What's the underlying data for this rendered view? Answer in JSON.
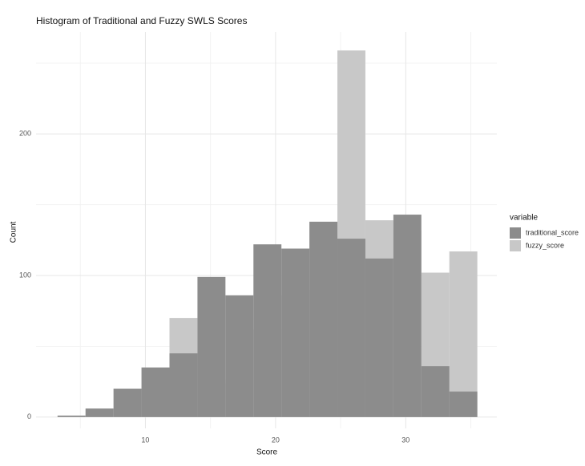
{
  "chart_data": {
    "type": "histogram",
    "title": "Histogram of Traditional and Fuzzy SWLS Scores",
    "x_label": "Score",
    "y_label": "Count",
    "legend_title": "variable",
    "bins": [
      3.25,
      5.4,
      7.55,
      9.7,
      11.85,
      14,
      16.15,
      18.3,
      20.45,
      22.6,
      24.75,
      26.9,
      29.05,
      31.2,
      33.35,
      35.5
    ],
    "series": [
      {
        "name": "fuzzy_score",
        "color": "#c8c8c8",
        "values": [
          0,
          0,
          0,
          0,
          70,
          24,
          27,
          62,
          86,
          90,
          259,
          139,
          132,
          102,
          117
        ]
      },
      {
        "name": "traditional_score",
        "color": "#8c8c8c",
        "values": [
          1,
          6,
          20,
          35,
          45,
          99,
          86,
          122,
          119,
          138,
          126,
          112,
          143,
          36,
          18
        ]
      }
    ],
    "legend_order": [
      1,
      0
    ],
    "xlim": [
      1.6,
      37
    ],
    "ylim": [
      -8,
      272
    ],
    "xticks": [
      10,
      20,
      30
    ],
    "yticks": [
      0,
      100,
      200
    ],
    "grid": true
  }
}
